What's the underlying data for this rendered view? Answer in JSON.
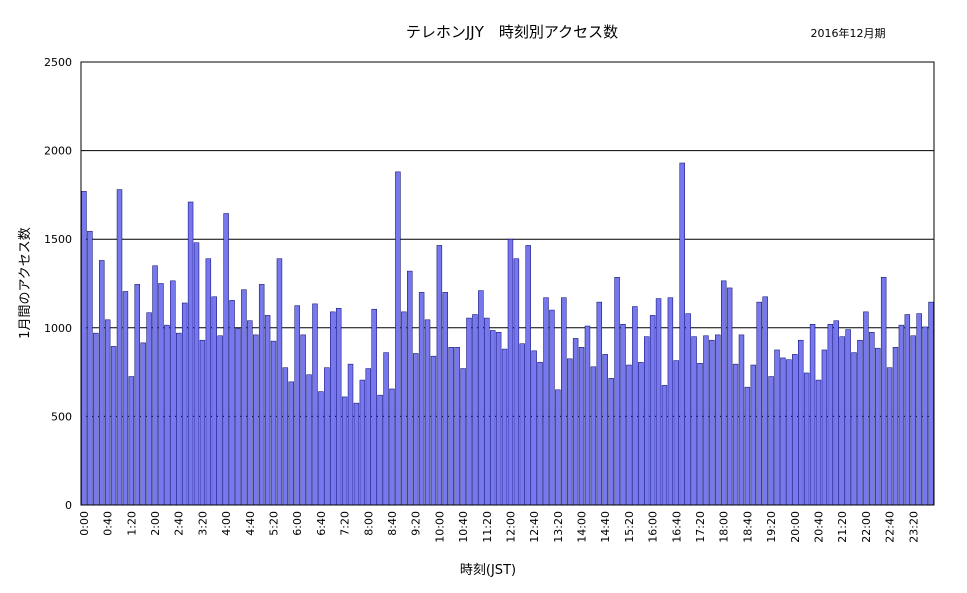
{
  "chart_data": {
    "type": "bar",
    "title": "テレホンJJY　時刻別アクセス数",
    "period": "2016年12月期",
    "xlabel": "時刻(JST)",
    "ylabel": "1月間のアクセス数",
    "ylim": [
      0,
      2500
    ],
    "yticks": [
      0,
      500,
      1000,
      1500,
      2000,
      2500
    ],
    "grid": true,
    "bar_color": "#7777ee",
    "bar_edge_color": "#000066",
    "grid_color": "#000000",
    "tick_labels": [
      "0:00",
      "0:40",
      "1:20",
      "2:00",
      "2:40",
      "3:20",
      "4:00",
      "4:40",
      "5:20",
      "6:00",
      "6:40",
      "7:20",
      "8:00",
      "8:40",
      "9:20",
      "10:00",
      "10:40",
      "11:20",
      "12:00",
      "12:40",
      "13:20",
      "14:00",
      "14:40",
      "15:20",
      "16:00",
      "16:40",
      "17:20",
      "18:00",
      "18:40",
      "19:20",
      "20:00",
      "20:40",
      "21:20",
      "22:00",
      "22:40",
      "23:20"
    ],
    "values": [
      1770,
      1545,
      970,
      1380,
      1045,
      895,
      1780,
      1205,
      725,
      1245,
      915,
      1085,
      1350,
      1250,
      1015,
      1265,
      970,
      1140,
      1710,
      1480,
      930,
      1390,
      1175,
      955,
      1645,
      1155,
      995,
      1215,
      1040,
      960,
      1245,
      1070,
      925,
      1390,
      775,
      695,
      1125,
      960,
      735,
      1135,
      640,
      775,
      1090,
      1110,
      610,
      795,
      575,
      705,
      770,
      1105,
      620,
      860,
      655,
      1880,
      1090,
      1320,
      855,
      1200,
      1045,
      840,
      1465,
      1200,
      890,
      890,
      770,
      1055,
      1075,
      1210,
      1055,
      985,
      975,
      880,
      1500,
      1390,
      910,
      1465,
      870,
      805,
      1170,
      1100,
      650,
      1170,
      825,
      940,
      890,
      1010,
      780,
      1145,
      850,
      715,
      1285,
      1020,
      790,
      1120,
      805,
      950,
      1070,
      1165,
      675,
      1170,
      815,
      1930,
      1080,
      950,
      800,
      955,
      930,
      960,
      1265,
      1225,
      795,
      960,
      665,
      790,
      1145,
      1175,
      725,
      875,
      830,
      820,
      850,
      930,
      745,
      1020,
      705,
      875,
      1020,
      1040,
      950,
      990,
      860,
      930,
      1090,
      975,
      885,
      1285,
      775,
      890,
      1015,
      1075,
      955,
      1080,
      1005,
      1145
    ]
  }
}
